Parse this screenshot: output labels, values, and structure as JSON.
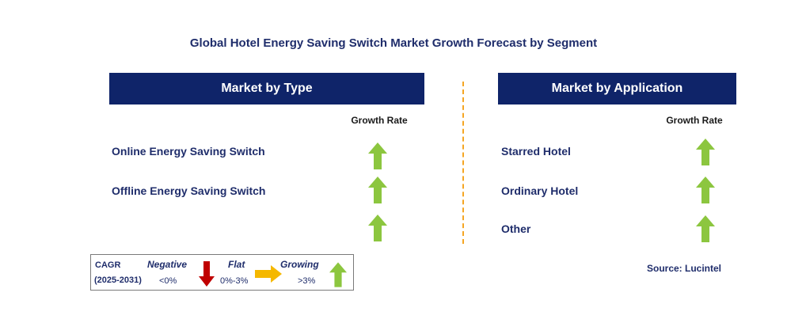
{
  "title": "Global Hotel Energy Saving Switch Market Growth Forecast by Segment",
  "left_panel": {
    "header": "Market by Type",
    "growth_label": "Growth Rate",
    "rows": [
      {
        "label": "Online Energy Saving Switch",
        "trend": "growing"
      },
      {
        "label": "Offline Energy Saving Switch",
        "trend": "growing"
      },
      {
        "label": "",
        "trend": "growing"
      }
    ]
  },
  "right_panel": {
    "header": "Market by Application",
    "growth_label": "Growth Rate",
    "rows": [
      {
        "label": "Starred Hotel",
        "trend": "growing"
      },
      {
        "label": "Ordinary Hotel",
        "trend": "growing"
      },
      {
        "label": "Other",
        "trend": "growing"
      }
    ]
  },
  "legend": {
    "cagr_label": "CAGR",
    "period": "(2025-2031)",
    "negative": {
      "label": "Negative",
      "range": "<0%"
    },
    "flat": {
      "label": "Flat",
      "range": "0%-3%"
    },
    "growing": {
      "label": "Growing",
      "range": ">3%"
    }
  },
  "source": "Source: Lucintel",
  "colors": {
    "header_bg": "#0f2469",
    "growing_arrow": "#8cc63f",
    "negative_arrow": "#c00000",
    "flat_arrow": "#f5b800",
    "divider": "#f5a623"
  }
}
